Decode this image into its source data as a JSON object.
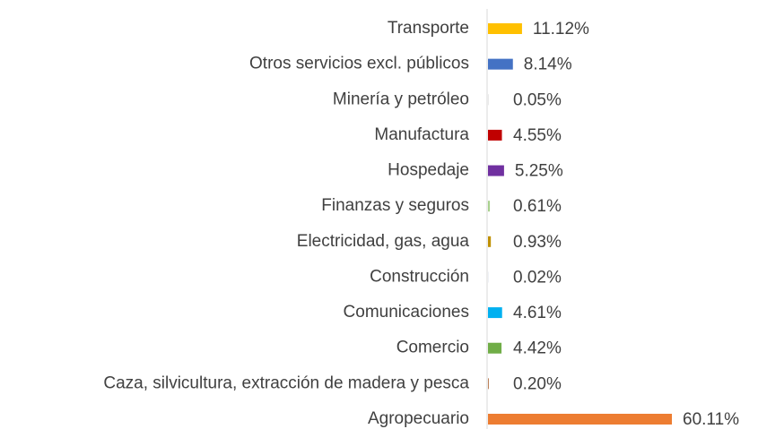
{
  "chart_data": {
    "type": "hbar",
    "categories": [
      "Transporte",
      "Otros servicios excl. públicos",
      "Minería y petróleo",
      "Manufactura",
      "Hospedaje",
      "Finanzas y seguros",
      "Electricidad, gas, agua",
      "Construcción",
      "Comunicaciones",
      "Comercio",
      "Caza, silvicultura, extracción de madera y pesca",
      "Agropecuario"
    ],
    "values": [
      11.12,
      8.14,
      0.05,
      4.55,
      5.25,
      0.61,
      0.93,
      0.02,
      4.61,
      4.42,
      0.2,
      60.11
    ],
    "value_labels": [
      "11.12%",
      "8.14%",
      "0.05%",
      "4.55%",
      "5.25%",
      "0.61%",
      "0.93%",
      "0.02%",
      "4.61%",
      "4.42%",
      "0.20%",
      "60.11%"
    ],
    "colors": [
      "#ffc000",
      "#4472c4",
      "#7f7f7f",
      "#c00000",
      "#7030a0",
      "#a9d18e",
      "#bf9000",
      "#264478",
      "#00b0f0",
      "#70ad47",
      "#9e480e",
      "#ed7d31"
    ]
  }
}
